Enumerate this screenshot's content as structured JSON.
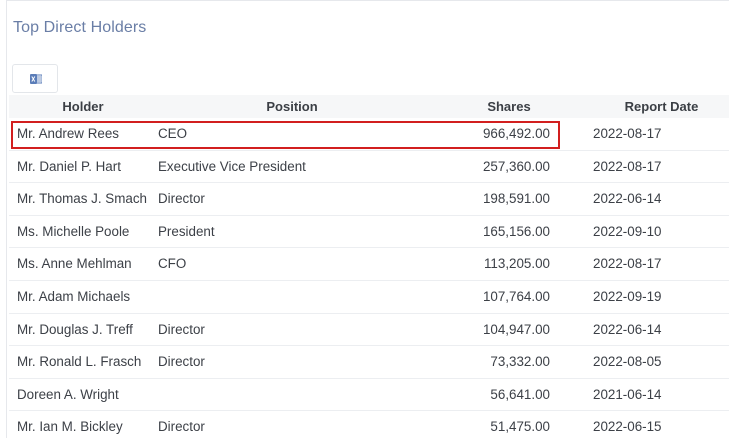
{
  "section": {
    "title": "Top Direct Holders"
  },
  "toolbar": {
    "export_icon": "excel-export-icon"
  },
  "table": {
    "columns": {
      "holder": "Holder",
      "position": "Position",
      "shares": "Shares",
      "report_date": "Report Date"
    },
    "rows": [
      {
        "holder": "Mr. Andrew Rees",
        "position": "CEO",
        "shares": "966,492.00",
        "report_date": "2022-08-17"
      },
      {
        "holder": "Mr. Daniel P. Hart",
        "position": "Executive Vice President",
        "shares": "257,360.00",
        "report_date": "2022-08-17"
      },
      {
        "holder": "Mr. Thomas J. Smach",
        "position": "Director",
        "shares": "198,591.00",
        "report_date": "2022-06-14"
      },
      {
        "holder": "Ms. Michelle Poole",
        "position": "President",
        "shares": "165,156.00",
        "report_date": "2022-09-10"
      },
      {
        "holder": "Ms. Anne Mehlman",
        "position": "CFO",
        "shares": "113,205.00",
        "report_date": "2022-08-17"
      },
      {
        "holder": "Mr. Adam Michaels",
        "position": "",
        "shares": "107,764.00",
        "report_date": "2022-09-19"
      },
      {
        "holder": "Mr. Douglas J. Treff",
        "position": "Director",
        "shares": "104,947.00",
        "report_date": "2022-06-14"
      },
      {
        "holder": "Mr. Ronald L. Frasch",
        "position": "Director",
        "shares": "73,332.00",
        "report_date": "2022-08-05"
      },
      {
        "holder": "Doreen A. Wright",
        "position": "",
        "shares": "56,641.00",
        "report_date": "2021-06-14"
      },
      {
        "holder": "Mr. Ian M. Bickley",
        "position": "Director",
        "shares": "51,475.00",
        "report_date": "2022-06-15"
      }
    ]
  },
  "colors": {
    "title": "#6a7ea6",
    "highlight_border": "#d21f1f",
    "header_bg": "#f6f7f8",
    "excel_green": "#5b7db8"
  }
}
